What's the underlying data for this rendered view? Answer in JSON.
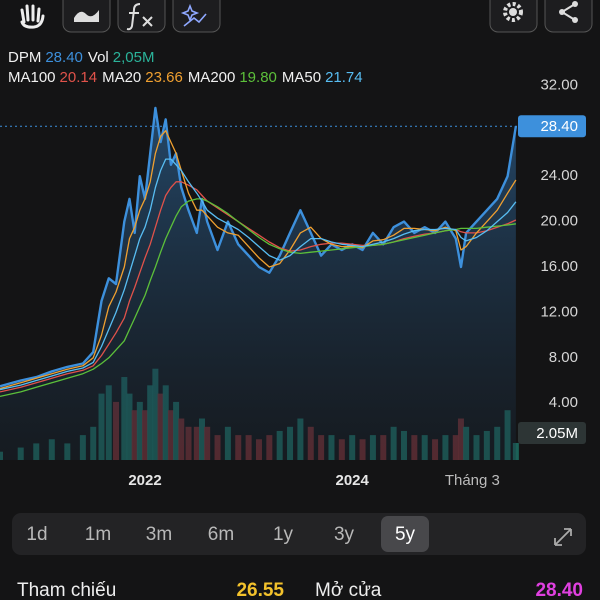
{
  "chart_data": {
    "type": "line",
    "x": [
      2020.6,
      2020.8,
      2020.95,
      2021.1,
      2021.25,
      2021.4,
      2021.5,
      2021.58,
      2021.65,
      2021.72,
      2021.8,
      2021.85,
      2021.9,
      2021.95,
      2022.0,
      2022.05,
      2022.1,
      2022.15,
      2022.2,
      2022.25,
      2022.3,
      2022.35,
      2022.42,
      2022.5,
      2022.55,
      2022.6,
      2022.7,
      2022.8,
      2022.9,
      2023.0,
      2023.1,
      2023.2,
      2023.3,
      2023.4,
      2023.5,
      2023.6,
      2023.7,
      2023.8,
      2023.9,
      2024.0,
      2024.1,
      2024.2,
      2024.3,
      2024.4,
      2024.5,
      2024.6,
      2024.7,
      2024.8,
      2024.9,
      2025.0,
      2025.05,
      2025.1,
      2025.2,
      2025.3,
      2025.4,
      2025.5,
      2025.58
    ],
    "series": [
      {
        "name": "DPM",
        "legend_value": "28.40",
        "color": "#3d90dc",
        "values": [
          5.5,
          6.0,
          6.3,
          6.8,
          7.2,
          7.5,
          8.5,
          13,
          15,
          14.5,
          20,
          22,
          19,
          24,
          22,
          26,
          30,
          27,
          29,
          25,
          26,
          23,
          21,
          19,
          22,
          20,
          17.5,
          20,
          18,
          17,
          16,
          15.5,
          17,
          19,
          21,
          19,
          17,
          18,
          17.5,
          18,
          17.5,
          19,
          18,
          19.5,
          20,
          19,
          19.5,
          19,
          20,
          18.5,
          16,
          19,
          20,
          21,
          22,
          24,
          28.4
        ]
      },
      {
        "name": "MA100",
        "legend_value": "20.14",
        "color": "#e0524a",
        "values": [
          5.0,
          5.4,
          5.8,
          6.2,
          6.6,
          6.9,
          7.3,
          8.2,
          9.2,
          10.2,
          11.5,
          13,
          14.2,
          15.5,
          16.8,
          18,
          19.5,
          21,
          22.3,
          23,
          23.5,
          23.5,
          23.2,
          22.8,
          22.3,
          21.8,
          21.2,
          20.6,
          20,
          19.4,
          18.8,
          18.2,
          17.7,
          17.4,
          17.5,
          17.8,
          18,
          18.1,
          18.1,
          18,
          17.9,
          17.9,
          18,
          18.2,
          18.5,
          18.7,
          18.9,
          19,
          19.2,
          19.3,
          19.1,
          19,
          19,
          19.2,
          19.5,
          19.8,
          20.14
        ]
      },
      {
        "name": "MA20",
        "legend_value": "23.66",
        "color": "#f0a030",
        "values": [
          5.3,
          5.8,
          6.2,
          6.6,
          7.0,
          7.3,
          8.0,
          10,
          12.5,
          13.8,
          16,
          18.5,
          19.5,
          21,
          22,
          23.5,
          26,
          27.5,
          28,
          27,
          26,
          24.5,
          22.5,
          21,
          21,
          20.5,
          19.5,
          19,
          18.8,
          17.8,
          16.8,
          16,
          16.3,
          17.5,
          19,
          19.5,
          18.5,
          18,
          17.8,
          17.8,
          17.7,
          18.3,
          18.4,
          18.8,
          19.4,
          19.4,
          19.3,
          19.2,
          19.5,
          19.2,
          17.5,
          17.8,
          19,
          20,
          21,
          22.5,
          23.66
        ]
      },
      {
        "name": "MA200",
        "legend_value": "19.80",
        "color": "#5cc03a",
        "values": [
          4.6,
          5.0,
          5.4,
          5.8,
          6.2,
          6.6,
          7.0,
          7.5,
          8.0,
          8.7,
          9.5,
          10.5,
          11.5,
          12.5,
          13.5,
          14.8,
          16,
          17.3,
          18.5,
          19.5,
          20.5,
          21.3,
          21.8,
          22,
          22,
          21.8,
          21.3,
          20.7,
          20,
          19.3,
          18.6,
          18,
          17.6,
          17.3,
          17.2,
          17.3,
          17.4,
          17.5,
          17.6,
          17.7,
          17.8,
          17.9,
          18,
          18.2,
          18.4,
          18.6,
          18.8,
          19,
          19.2,
          19.3,
          19.4,
          19.4,
          19.4,
          19.5,
          19.6,
          19.7,
          19.8
        ]
      },
      {
        "name": "MA50",
        "legend_value": "21.74",
        "color": "#58bdf2",
        "values": [
          5.2,
          5.6,
          6.0,
          6.4,
          6.8,
          7.1,
          7.6,
          9,
          10.5,
          12,
          14,
          15.5,
          17,
          18.5,
          19.5,
          21,
          23,
          24.5,
          25.5,
          25.5,
          25,
          24.5,
          23.5,
          22.5,
          21.8,
          21,
          20.3,
          19.8,
          19.3,
          18.6,
          17.8,
          17,
          16.6,
          17,
          17.8,
          18.5,
          18.5,
          18.2,
          18,
          17.9,
          17.8,
          18,
          18.2,
          18.5,
          18.9,
          19.2,
          19.3,
          19.3,
          19.4,
          19.3,
          18.6,
          18.3,
          18.6,
          19.2,
          20,
          20.8,
          21.74
        ]
      },
      {
        "name": "Vol",
        "legend_value": "2,05M",
        "axis": "y2",
        "color": "#2bb39a",
        "up_color": "#1d6f63",
        "down_color": "#7a2e30",
        "values": [
          1,
          1.5,
          2,
          2.5,
          2,
          3,
          4,
          8,
          9,
          7,
          10,
          8,
          6,
          7,
          6,
          9,
          11,
          8,
          9,
          6,
          7,
          5,
          4,
          4,
          5,
          4,
          3,
          4,
          3,
          3,
          2.5,
          3,
          3.5,
          4,
          5,
          4,
          3,
          3,
          2.5,
          3,
          2.5,
          3,
          3,
          4,
          3.5,
          3,
          3,
          2.5,
          3,
          3,
          5,
          4,
          3,
          3.5,
          4,
          6,
          2.05
        ]
      }
    ],
    "last_price_label": "28.40",
    "last_volume_label": "2.05M",
    "xlim": [
      2020.6,
      2025.62
    ],
    "xticks": [
      {
        "value": 2022,
        "label": "2022"
      },
      {
        "value": 2024,
        "label": "2024"
      },
      {
        "value": 2025.16,
        "label": "Tháng 3"
      }
    ],
    "ylim": [
      -1,
      33.35
    ],
    "yticks": [
      {
        "value": 4,
        "label": "4.00"
      },
      {
        "value": 8,
        "label": "8.00"
      },
      {
        "value": 12,
        "label": "12.00"
      },
      {
        "value": 16,
        "label": "16.00"
      },
      {
        "value": 20,
        "label": "20.00"
      },
      {
        "value": 24,
        "label": "24.00"
      },
      {
        "value": 28,
        "label": "28.00"
      },
      {
        "value": 32,
        "label": "32.00"
      }
    ],
    "y2lim": [
      0,
      47
    ],
    "grid": false
  },
  "timeframes": {
    "options": [
      "1d",
      "1m",
      "3m",
      "6m",
      "1y",
      "3y",
      "5y"
    ],
    "selected": 6
  },
  "quote": {
    "reference_label": "Tham chiếu",
    "reference": "26.55",
    "open_label": "Mở cửa",
    "open": "28.40"
  }
}
